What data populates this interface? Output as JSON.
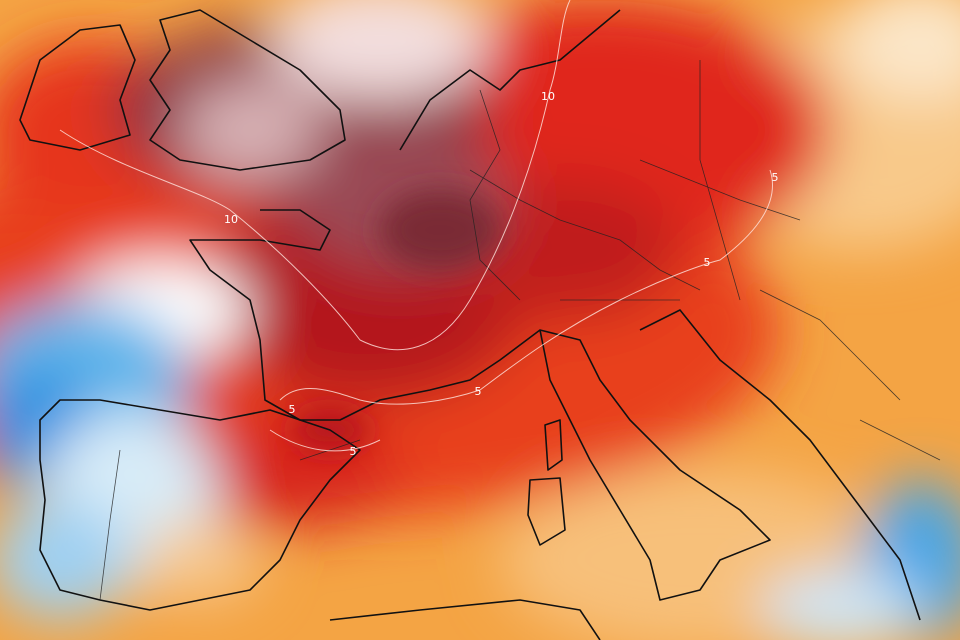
{
  "map": {
    "contour_labels": [
      "10",
      "10",
      "5",
      "5",
      "5",
      "5",
      "5"
    ]
  }
}
